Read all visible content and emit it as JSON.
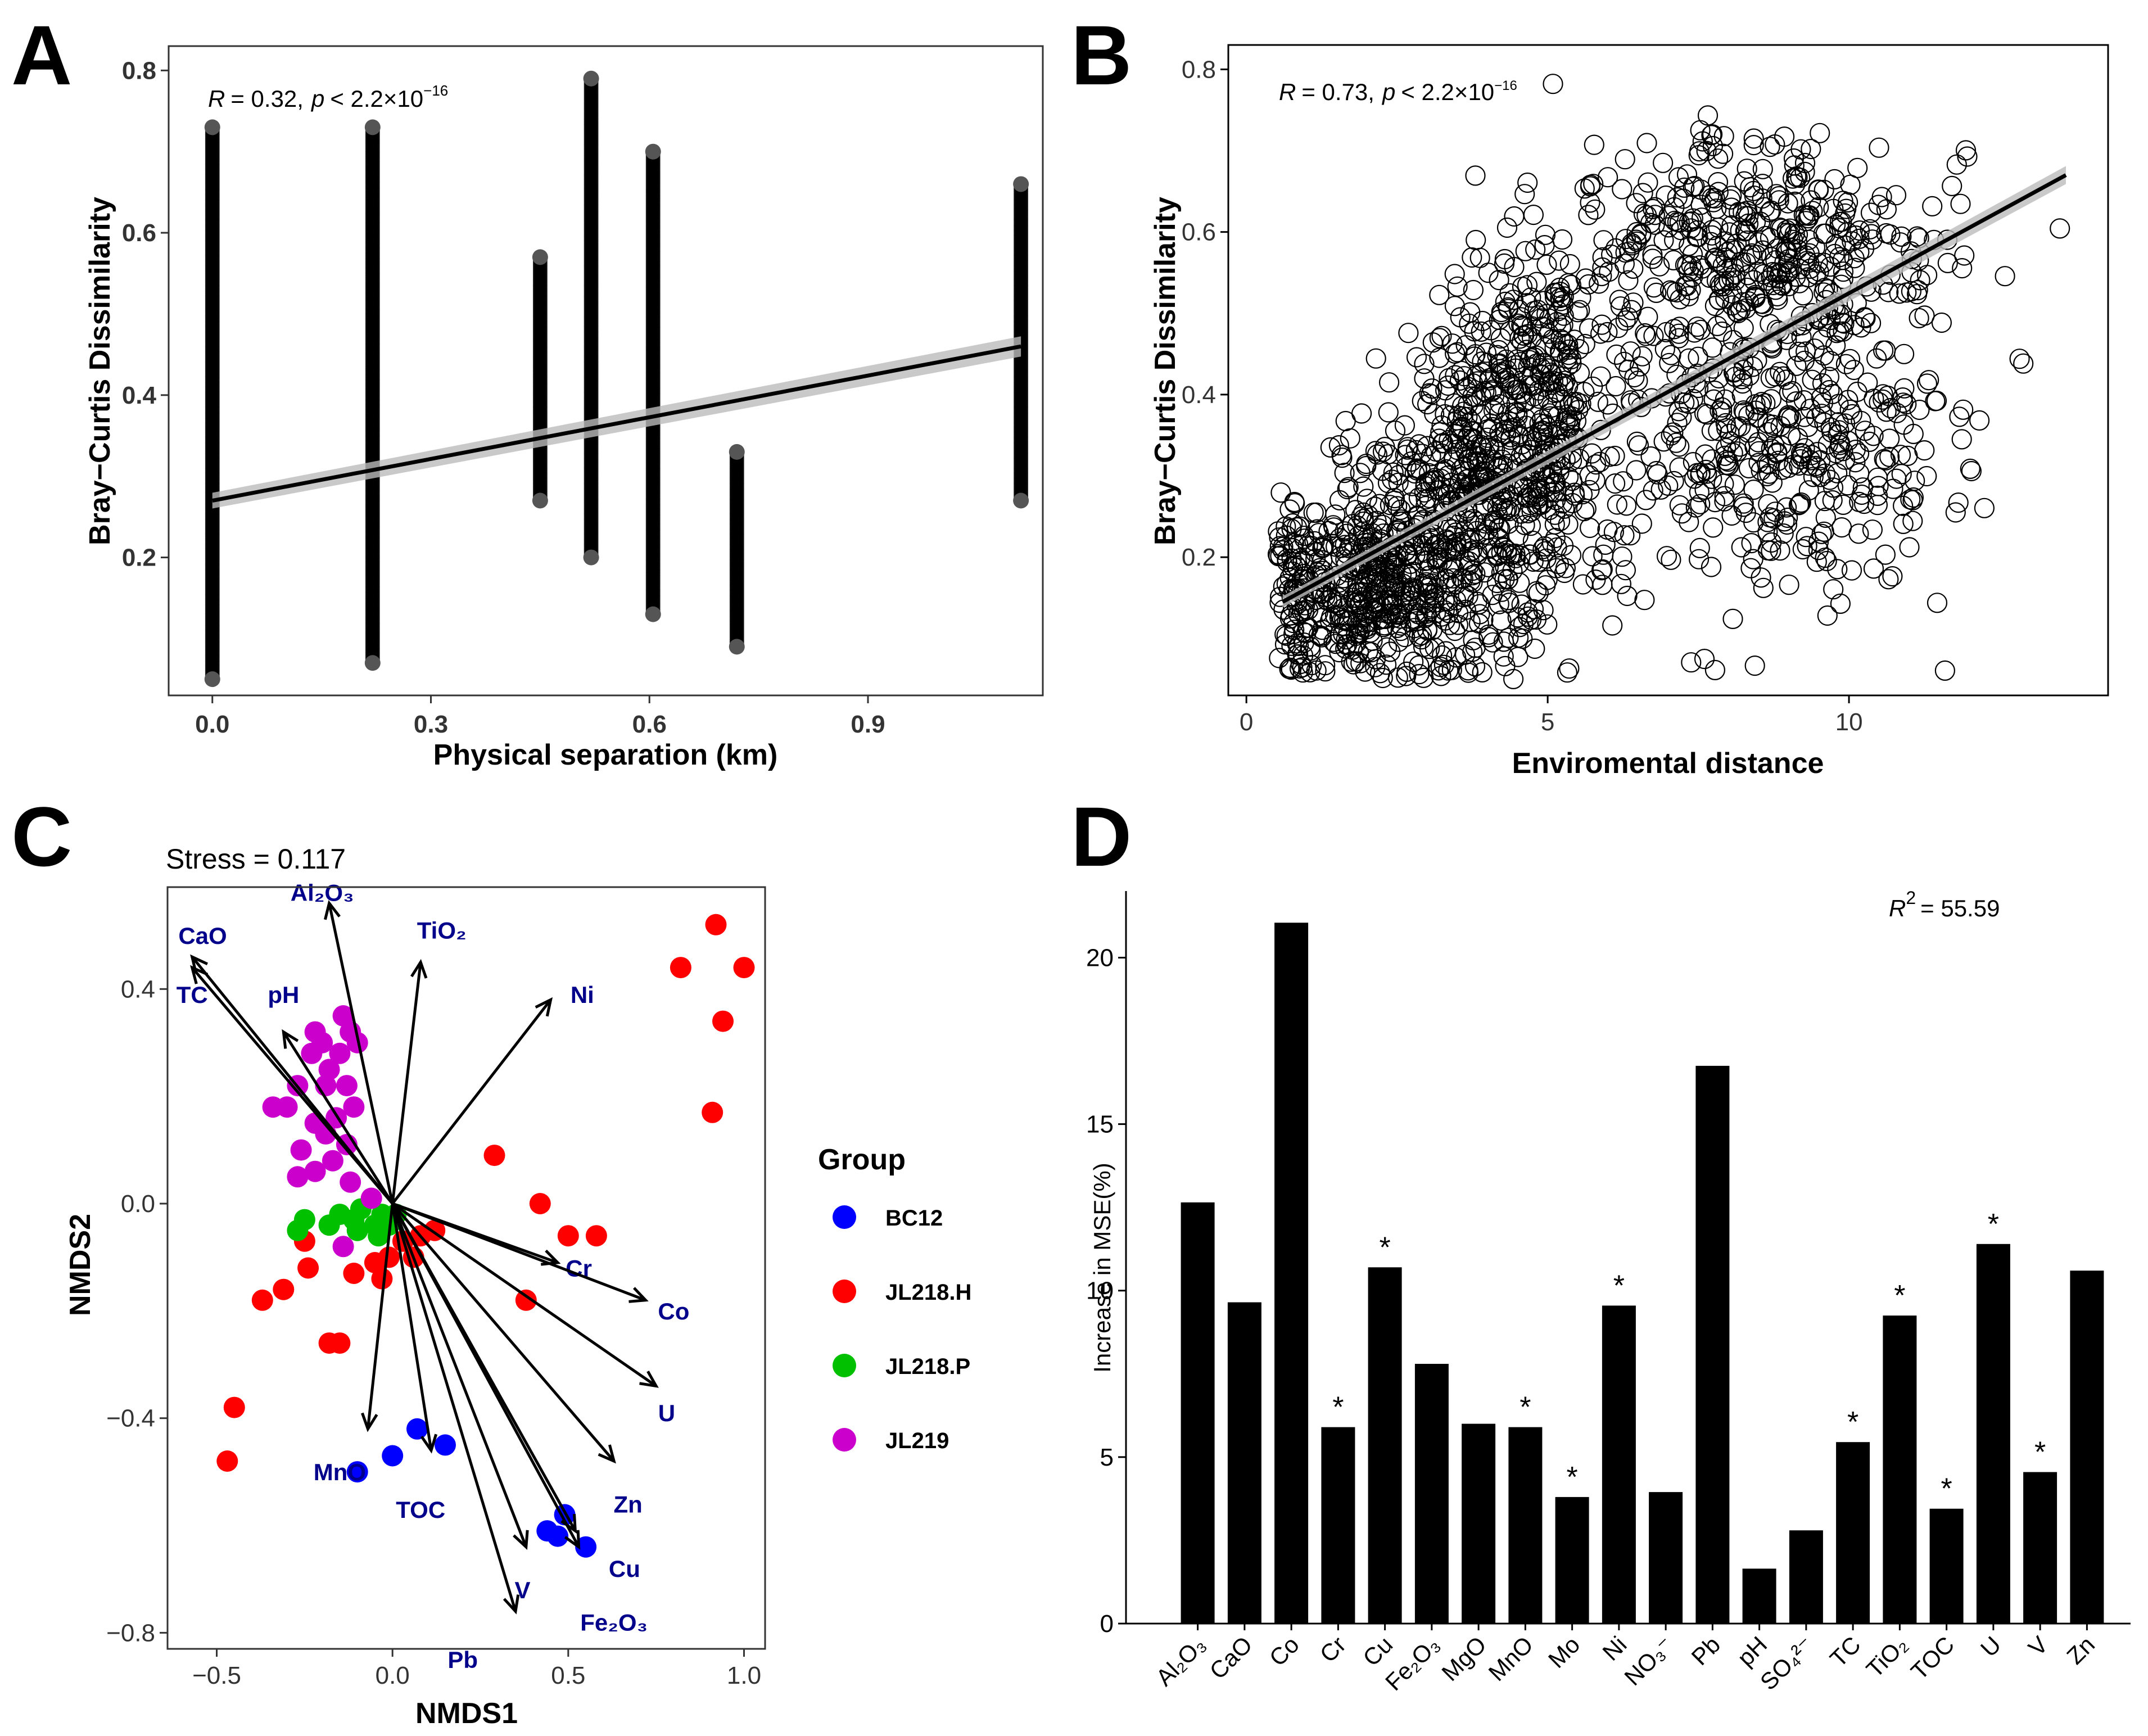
{
  "panels": {
    "A": "A",
    "B": "B",
    "C": "C",
    "D": "D"
  },
  "chart_data": [
    {
      "panel": "A",
      "type": "scatter",
      "title": "",
      "xlabel": "Physical separation (km)",
      "ylabel": "Bray−Curtis Dissimilarity",
      "xlim": [
        -0.06,
        1.14
      ],
      "ylim": [
        0.03,
        0.83
      ],
      "xticks": [
        0.0,
        0.3,
        0.6,
        0.9
      ],
      "xtick_labels": [
        "0.0",
        "0.3",
        "0.6",
        "0.9"
      ],
      "yticks": [
        0.2,
        0.4,
        0.6,
        0.8
      ],
      "ytick_labels": [
        "0.2",
        "0.4",
        "0.6",
        "0.8"
      ],
      "annotation": "R = 0.32, p < 2.2×10⁻¹⁶",
      "stat": {
        "r_symbol": "R",
        "r_value": "0.32",
        "p_symbol": "p",
        "p_text": "< 2.2×10",
        "p_exp": "−16"
      },
      "columns": [
        {
          "x": 0.0,
          "ymin": 0.05,
          "ymax": 0.73
        },
        {
          "x": 0.22,
          "ymin": 0.07,
          "ymax": 0.73
        },
        {
          "x": 0.45,
          "ymin": 0.27,
          "ymax": 0.57
        },
        {
          "x": 0.52,
          "ymin": 0.2,
          "ymax": 0.79
        },
        {
          "x": 0.605,
          "ymin": 0.13,
          "ymax": 0.7
        },
        {
          "x": 0.72,
          "ymin": 0.09,
          "ymax": 0.33
        },
        {
          "x": 1.11,
          "ymin": 0.27,
          "ymax": 0.66
        }
      ],
      "regression": {
        "x": [
          0.0,
          1.11
        ],
        "y": [
          0.27,
          0.46
        ]
      }
    },
    {
      "panel": "B",
      "type": "scatter",
      "title": "",
      "xlabel": "Enviromental distance",
      "ylabel": "Bray−Curtis Dissimilarity",
      "xlim": [
        -0.3,
        14.3
      ],
      "ylim": [
        0.03,
        0.83
      ],
      "xticks": [
        0,
        5,
        10
      ],
      "xtick_labels": [
        "0",
        "5",
        "10"
      ],
      "yticks": [
        0.2,
        0.4,
        0.6,
        0.8
      ],
      "ytick_labels": [
        "0.2",
        "0.4",
        "0.6",
        "0.8"
      ],
      "annotation": "R = 0.73, p < 2.2×10⁻¹⁶",
      "stat": {
        "r_symbol": "R",
        "r_value": "0.73",
        "p_symbol": "p",
        "p_text": "< 2.2×10",
        "p_exp": "−16"
      },
      "clusters": [
        {
          "cx": 1.8,
          "cy": 0.16,
          "sx": 0.9,
          "sy": 0.06,
          "n": 420
        },
        {
          "cx": 3.6,
          "cy": 0.26,
          "sx": 0.9,
          "sy": 0.09,
          "n": 480
        },
        {
          "cx": 4.8,
          "cy": 0.4,
          "sx": 0.6,
          "sy": 0.09,
          "n": 300
        },
        {
          "cx": 8.5,
          "cy": 0.58,
          "sx": 1.6,
          "sy": 0.07,
          "n": 430
        },
        {
          "cx": 9.3,
          "cy": 0.34,
          "sx": 1.3,
          "sy": 0.08,
          "n": 300
        },
        {
          "cx": 6.8,
          "cy": 0.3,
          "sx": 1.5,
          "sy": 0.12,
          "n": 160
        }
      ],
      "regression": {
        "x": [
          0.6,
          13.6
        ],
        "y": [
          0.145,
          0.67
        ]
      }
    },
    {
      "panel": "C",
      "type": "scatter",
      "title": "Stress = 0.117",
      "xlabel": "NMDS1",
      "ylabel": "NMDS2",
      "xlim": [
        -0.64,
        1.06
      ],
      "ylim": [
        -0.83,
        0.59
      ],
      "xticks": [
        -0.5,
        0.0,
        0.5,
        1.0
      ],
      "xtick_labels": [
        "−0.5",
        "0.0",
        "0.5",
        "1.0"
      ],
      "yticks": [
        -0.8,
        -0.4,
        0.0,
        0.4
      ],
      "ytick_labels": [
        "−0.8",
        "−0.4",
        "0.0",
        "0.4"
      ],
      "legend": {
        "title": "Group",
        "position": "right",
        "items": [
          {
            "name": "BC12",
            "color": "#0000ff"
          },
          {
            "name": "JL218.H",
            "color": "#ff0000"
          },
          {
            "name": "JL218.P",
            "color": "#00c000"
          },
          {
            "name": "JL219",
            "color": "#cc00cc"
          }
        ]
      },
      "series": [
        {
          "name": "BC12",
          "color": "#0000ff",
          "points": [
            [
              -0.1,
              -0.5
            ],
            [
              0.0,
              -0.47
            ],
            [
              0.07,
              -0.42
            ],
            [
              0.15,
              -0.45
            ],
            [
              0.44,
              -0.61
            ],
            [
              0.47,
              -0.62
            ],
            [
              0.49,
              -0.58
            ],
            [
              0.55,
              -0.64
            ]
          ]
        },
        {
          "name": "JL218.H",
          "color": "#ff0000",
          "points": [
            [
              -0.45,
              -0.38
            ],
            [
              -0.47,
              -0.48
            ],
            [
              -0.37,
              -0.18
            ],
            [
              -0.31,
              -0.16
            ],
            [
              -0.24,
              -0.12
            ],
            [
              -0.25,
              -0.07
            ],
            [
              -0.18,
              -0.26
            ],
            [
              -0.15,
              -0.26
            ],
            [
              -0.11,
              -0.13
            ],
            [
              -0.05,
              -0.11
            ],
            [
              -0.03,
              -0.14
            ],
            [
              -0.01,
              -0.1
            ],
            [
              0.03,
              -0.07
            ],
            [
              0.08,
              -0.06
            ],
            [
              0.12,
              -0.05
            ],
            [
              0.06,
              -0.1
            ],
            [
              0.29,
              0.09
            ],
            [
              0.42,
              0.0
            ],
            [
              0.5,
              -0.06
            ],
            [
              0.58,
              -0.06
            ],
            [
              0.38,
              -0.18
            ],
            [
              0.82,
              0.44
            ],
            [
              0.92,
              0.52
            ],
            [
              1.0,
              0.44
            ],
            [
              0.94,
              0.34
            ],
            [
              0.91,
              0.17
            ]
          ]
        },
        {
          "name": "JL218.P",
          "color": "#00c000",
          "points": [
            [
              -0.27,
              -0.05
            ],
            [
              -0.25,
              -0.03
            ],
            [
              -0.18,
              -0.04
            ],
            [
              -0.15,
              -0.02
            ],
            [
              -0.11,
              -0.03
            ],
            [
              -0.09,
              -0.01
            ],
            [
              -0.1,
              -0.05
            ],
            [
              -0.05,
              -0.04
            ],
            [
              -0.03,
              -0.02
            ],
            [
              -0.04,
              -0.06
            ],
            [
              -0.01,
              -0.04
            ],
            [
              0.01,
              -0.02
            ]
          ]
        },
        {
          "name": "JL219",
          "color": "#cc00cc",
          "points": [
            [
              -0.34,
              0.18
            ],
            [
              -0.3,
              0.18
            ],
            [
              -0.27,
              0.22
            ],
            [
              -0.26,
              0.1
            ],
            [
              -0.27,
              0.05
            ],
            [
              -0.23,
              0.28
            ],
            [
              -0.22,
              0.32
            ],
            [
              -0.2,
              0.3
            ],
            [
              -0.18,
              0.25
            ],
            [
              -0.14,
              0.35
            ],
            [
              -0.12,
              0.32
            ],
            [
              -0.1,
              0.3
            ],
            [
              -0.15,
              0.28
            ],
            [
              -0.19,
              0.22
            ],
            [
              -0.13,
              0.22
            ],
            [
              -0.11,
              0.18
            ],
            [
              -0.16,
              0.16
            ],
            [
              -0.22,
              0.15
            ],
            [
              -0.19,
              0.13
            ],
            [
              -0.13,
              0.11
            ],
            [
              -0.22,
              0.06
            ],
            [
              -0.17,
              0.08
            ],
            [
              -0.12,
              0.04
            ],
            [
              -0.06,
              0.01
            ],
            [
              -0.14,
              -0.08
            ]
          ]
        }
      ],
      "vectors": [
        {
          "label": "Al₂O₃",
          "x": -0.18,
          "y": 0.56,
          "lx": -0.2,
          "ly": 0.58
        },
        {
          "label": "CaO",
          "x": -0.57,
          "y": 0.46,
          "lx": -0.54,
          "ly": 0.5
        },
        {
          "label": "TC",
          "x": -0.57,
          "y": 0.44,
          "lx": -0.57,
          "ly": 0.39
        },
        {
          "label": "TiO₂",
          "x": 0.08,
          "y": 0.45,
          "lx": 0.14,
          "ly": 0.51
        },
        {
          "label": "pH",
          "x": -0.31,
          "y": 0.32,
          "lx": -0.31,
          "ly": 0.39
        },
        {
          "label": "Ni",
          "x": 0.45,
          "y": 0.38,
          "lx": 0.54,
          "ly": 0.39
        },
        {
          "label": "Cr",
          "x": 0.47,
          "y": -0.11,
          "lx": 0.53,
          "ly": -0.12
        },
        {
          "label": "Co",
          "x": 0.72,
          "y": -0.18,
          "lx": 0.8,
          "ly": -0.2
        },
        {
          "label": "U",
          "x": 0.75,
          "y": -0.34,
          "lx": 0.78,
          "ly": -0.39
        },
        {
          "label": "Zn",
          "x": 0.63,
          "y": -0.48,
          "lx": 0.67,
          "ly": -0.56
        },
        {
          "label": "MnO",
          "x": -0.07,
          "y": -0.42,
          "lx": -0.15,
          "ly": -0.5
        },
        {
          "label": "TOC",
          "x": 0.11,
          "y": -0.46,
          "lx": 0.08,
          "ly": -0.57
        },
        {
          "label": "V",
          "x": 0.38,
          "y": -0.64,
          "lx": 0.37,
          "ly": -0.72
        },
        {
          "label": "Cu",
          "x": 0.53,
          "y": -0.64,
          "lx": 0.66,
          "ly": -0.68
        },
        {
          "label": "Fe₂O₃",
          "x": 0.52,
          "y": -0.61,
          "lx": 0.63,
          "ly": -0.78
        },
        {
          "label": "Pb",
          "x": 0.35,
          "y": -0.76,
          "lx": 0.2,
          "ly": -0.85
        }
      ]
    },
    {
      "panel": "D",
      "type": "bar",
      "title": "",
      "xlabel": "",
      "ylabel": "Increase in MSE(%)",
      "ylim": [
        0,
        22
      ],
      "yticks": [
        0,
        5,
        10,
        15,
        20
      ],
      "ytick_labels": [
        "0",
        "5",
        "10",
        "15",
        "20"
      ],
      "annotation": "R² = 55.59",
      "stat": {
        "r_symbol": "R",
        "r_exp": "2",
        "r_text": "= 55.59"
      },
      "categories": [
        "Al₂O₃",
        "CaO",
        "Co",
        "Cr",
        "Cu",
        "Fe₂O₃",
        "MgO",
        "MnO",
        "Mo",
        "Ni",
        "NO₃⁻",
        "Pb",
        "pH",
        "SO₄²⁻",
        "TC",
        "TiO₂",
        "TOC",
        "U",
        "V",
        "Zn"
      ],
      "values": [
        12.65,
        9.65,
        21.05,
        5.9,
        10.7,
        7.8,
        6.0,
        5.9,
        3.8,
        9.55,
        3.95,
        16.75,
        1.65,
        2.8,
        5.45,
        9.25,
        3.45,
        11.4,
        4.55,
        10.6
      ],
      "significant": [
        false,
        false,
        false,
        true,
        true,
        false,
        false,
        true,
        true,
        true,
        false,
        false,
        false,
        false,
        true,
        true,
        true,
        true,
        true,
        false
      ],
      "significance_label": "*"
    }
  ]
}
